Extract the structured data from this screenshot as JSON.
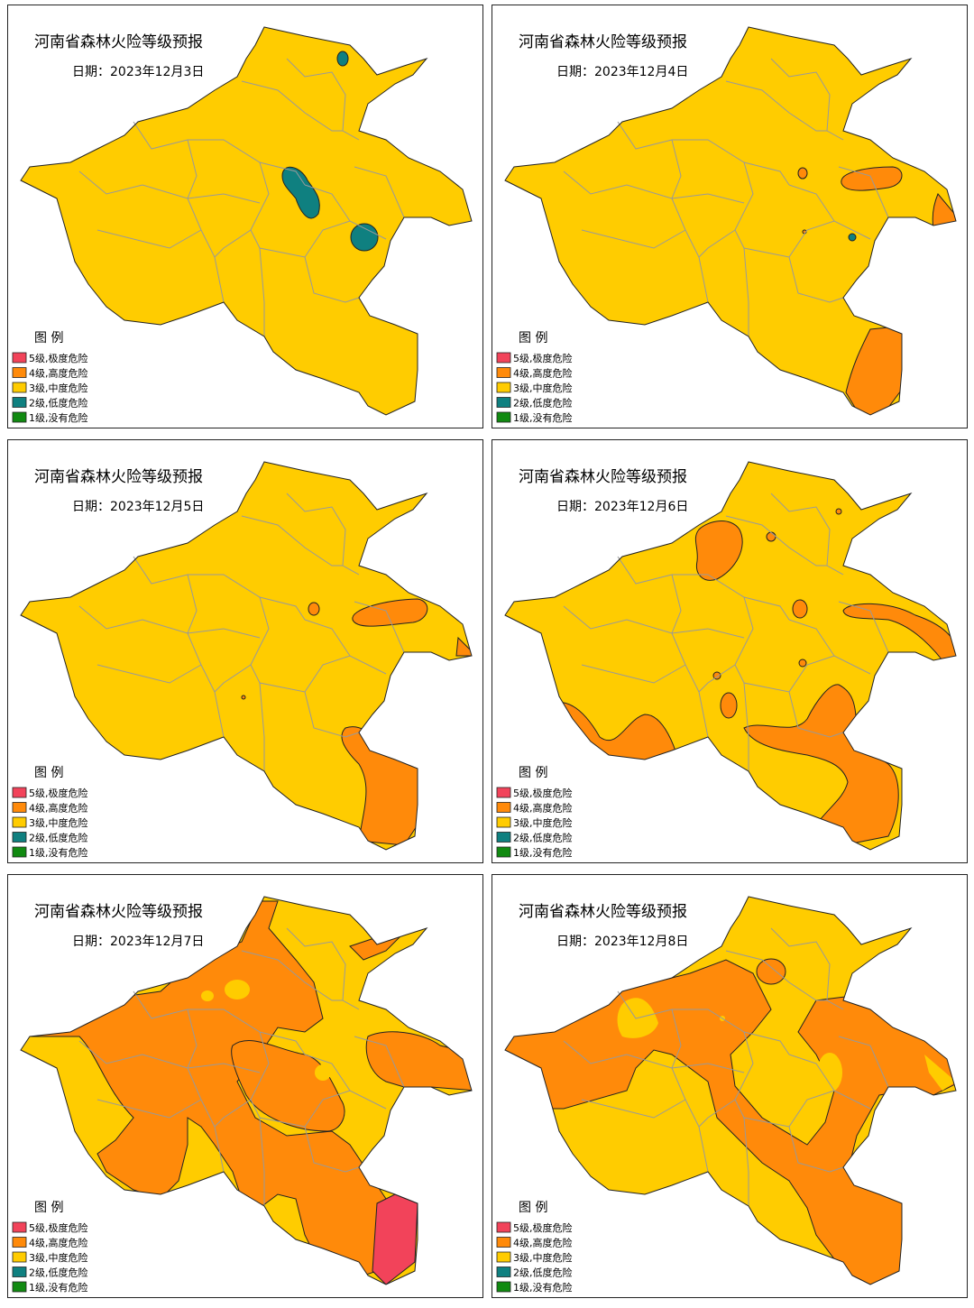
{
  "panels": [
    {
      "title": "河南省森林火险等级预报",
      "date": "日期：2023年12月3日",
      "legend": {
        "title": "图  例",
        "items": [
          "5级,极度危险",
          "4级,高度危险",
          "3级,中度危险",
          "2级,低度危险",
          "1级,没有危险"
        ]
      }
    },
    {
      "title": "河南省森林火险等级预报",
      "date": "日期：2023年12月4日",
      "legend": {
        "title": "图  例",
        "items": [
          "5级,极度危险",
          "4级,高度危险",
          "3级,中度危险",
          "2级,低度危险",
          "1级,没有危险"
        ]
      }
    },
    {
      "title": "河南省森林火险等级预报",
      "date": "日期：2023年12月5日",
      "legend": {
        "title": "图  例",
        "items": [
          "5级,极度危险",
          "4级,高度危险",
          "3级,中度危险",
          "2级,低度危险",
          "1级,没有危险"
        ]
      }
    },
    {
      "title": "河南省森林火险等级预报",
      "date": "日期：2023年12月6日",
      "legend": {
        "title": "图  例",
        "items": [
          "5级,极度危险",
          "4级,高度危险",
          "3级,中度危险",
          "2级,低度危险",
          "1级,没有危险"
        ]
      }
    },
    {
      "title": "河南省森林火险等级预报",
      "date": "日期：2023年12月7日",
      "legend": {
        "title": "图  例",
        "items": [
          "5级,极度危险",
          "4级,高度危险",
          "3级,中度危险",
          "2级,低度危险",
          "1级,没有危险"
        ]
      }
    },
    {
      "title": "河南省森林火险等级预报",
      "date": "日期：2023年12月8日",
      "legend": {
        "title": "图  例",
        "items": [
          "5级,极度危险",
          "4级,高度危险",
          "3级,中度危险",
          "2级,低度危险",
          "1级,没有危险"
        ]
      }
    }
  ]
}
